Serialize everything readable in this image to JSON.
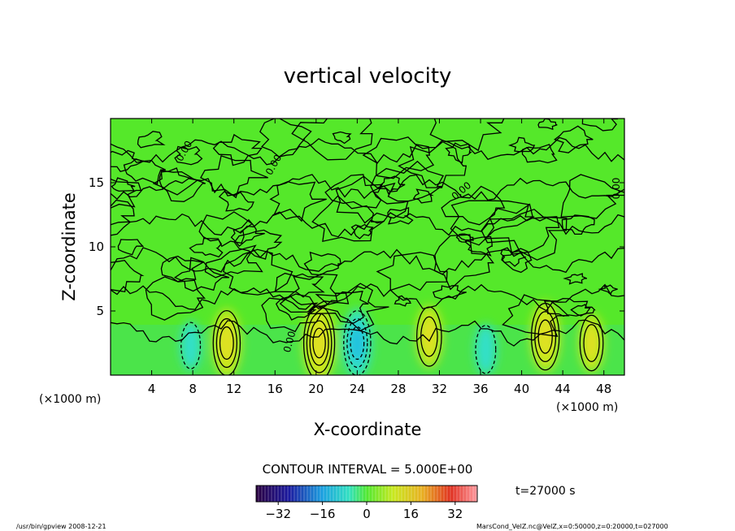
{
  "chart_data": {
    "type": "heatmap",
    "title": "vertical velocity",
    "xlabel": "X-coordinate",
    "ylabel": "Z-coordinate",
    "x_unit_left": "(×1000 m)",
    "x_unit_right": "(×1000 m)",
    "xlim": [
      0,
      50
    ],
    "ylim": [
      0,
      20
    ],
    "x_ticks": [
      4,
      8,
      12,
      16,
      20,
      24,
      28,
      32,
      36,
      40,
      44,
      48
    ],
    "y_ticks": [
      5,
      10,
      15
    ],
    "contour_interval_text": "CONTOUR INTERVAL = 5.000E+00",
    "contour_labels": [
      "0.00",
      "0.00",
      "0.00",
      "0.00",
      "0.00"
    ],
    "time_text": "t=27000 s",
    "colorbar": {
      "range": [
        -40,
        40
      ],
      "ticks": [
        -32,
        -16,
        0,
        16,
        32
      ]
    },
    "updrafts": [
      {
        "x": 11.3,
        "z": 2.5,
        "w": 15
      },
      {
        "x": 20.3,
        "z": 2.5,
        "w": 20
      },
      {
        "x": 24.0,
        "z": 2.5,
        "w": -15
      },
      {
        "x": 31.0,
        "z": 3.0,
        "w": 12
      },
      {
        "x": 42.3,
        "z": 3.0,
        "w": 16
      },
      {
        "x": 46.8,
        "z": 2.5,
        "w": 10
      },
      {
        "x": 7.8,
        "z": 2.3,
        "w": -5
      },
      {
        "x": 36.5,
        "z": 2.0,
        "w": -6
      }
    ],
    "footer_left": "/usr/bin/gpview  2008-12-21",
    "footer_right": "MarsCond_VelZ.nc@VelZ,x=0:50000,z=0:20000,t=027000",
    "colors": {
      "background_field": "#55e82a",
      "updraft": "#c8e81e",
      "downdraft": "#33e0c8"
    }
  }
}
